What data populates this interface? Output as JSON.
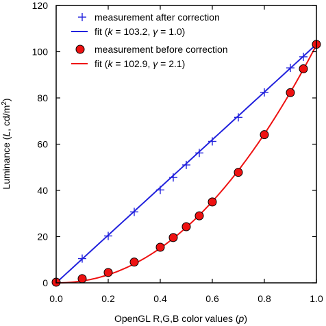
{
  "chart_data": {
    "type": "line",
    "xlabel": {
      "pre": "OpenGL R,G,B color values (",
      "var": "p",
      "post": ")"
    },
    "ylabel": {
      "pre": "Luminance (",
      "var": "L",
      "post": ", cd/m",
      "sup": "2",
      "end": ")"
    },
    "xlim": [
      0,
      1
    ],
    "ylim": [
      0,
      120
    ],
    "x_ticks": [
      0.0,
      0.2,
      0.4,
      0.6,
      0.8,
      1.0
    ],
    "x_tick_labels": [
      "0.0",
      "0.2",
      "0.4",
      "0.6",
      "0.8",
      "1.0"
    ],
    "y_ticks": [
      0,
      20,
      40,
      60,
      80,
      100,
      120
    ],
    "y_tick_labels": [
      "0",
      "20",
      "40",
      "60",
      "80",
      "100",
      "120"
    ],
    "grid": false,
    "legend_position": "top-left",
    "series": [
      {
        "name": "measurement after correction",
        "kind": "scatter",
        "marker": "plus",
        "color": "#2222dd",
        "x": [
          0.0,
          0.1,
          0.2,
          0.3,
          0.4,
          0.45,
          0.5,
          0.55,
          0.6,
          0.7,
          0.8,
          0.9,
          0.95,
          1.0
        ],
        "y": [
          0.3,
          10.5,
          20.3,
          30.7,
          40.2,
          45.6,
          51.0,
          56.2,
          61.2,
          71.6,
          82.4,
          93.0,
          97.8,
          103.2
        ]
      },
      {
        "name_parts": {
          "pre": "fit (",
          "k_sym": "k",
          "k_val": " = 103.2, ",
          "g_sym": "γ",
          "g_val": " = 1.0)"
        },
        "kind": "line",
        "color": "#2222dd",
        "k": 103.2,
        "gamma": 1.0
      },
      {
        "name": "measurement before correction",
        "kind": "scatter",
        "marker": "circle",
        "color": "#ee1111",
        "x": [
          0.0,
          0.1,
          0.2,
          0.3,
          0.4,
          0.45,
          0.5,
          0.55,
          0.6,
          0.7,
          0.8,
          0.9,
          0.95,
          1.0
        ],
        "y": [
          0.3,
          1.8,
          4.5,
          9.0,
          15.4,
          19.6,
          24.3,
          29.0,
          35.0,
          47.8,
          64.1,
          82.3,
          92.6,
          103.2
        ]
      },
      {
        "name_parts": {
          "pre": "fit (",
          "k_sym": "k",
          "k_val": " = 102.9, ",
          "g_sym": "γ",
          "g_val": " = 2.1)"
        },
        "kind": "line",
        "color": "#ee1111",
        "k": 102.9,
        "gamma": 2.1
      }
    ]
  }
}
